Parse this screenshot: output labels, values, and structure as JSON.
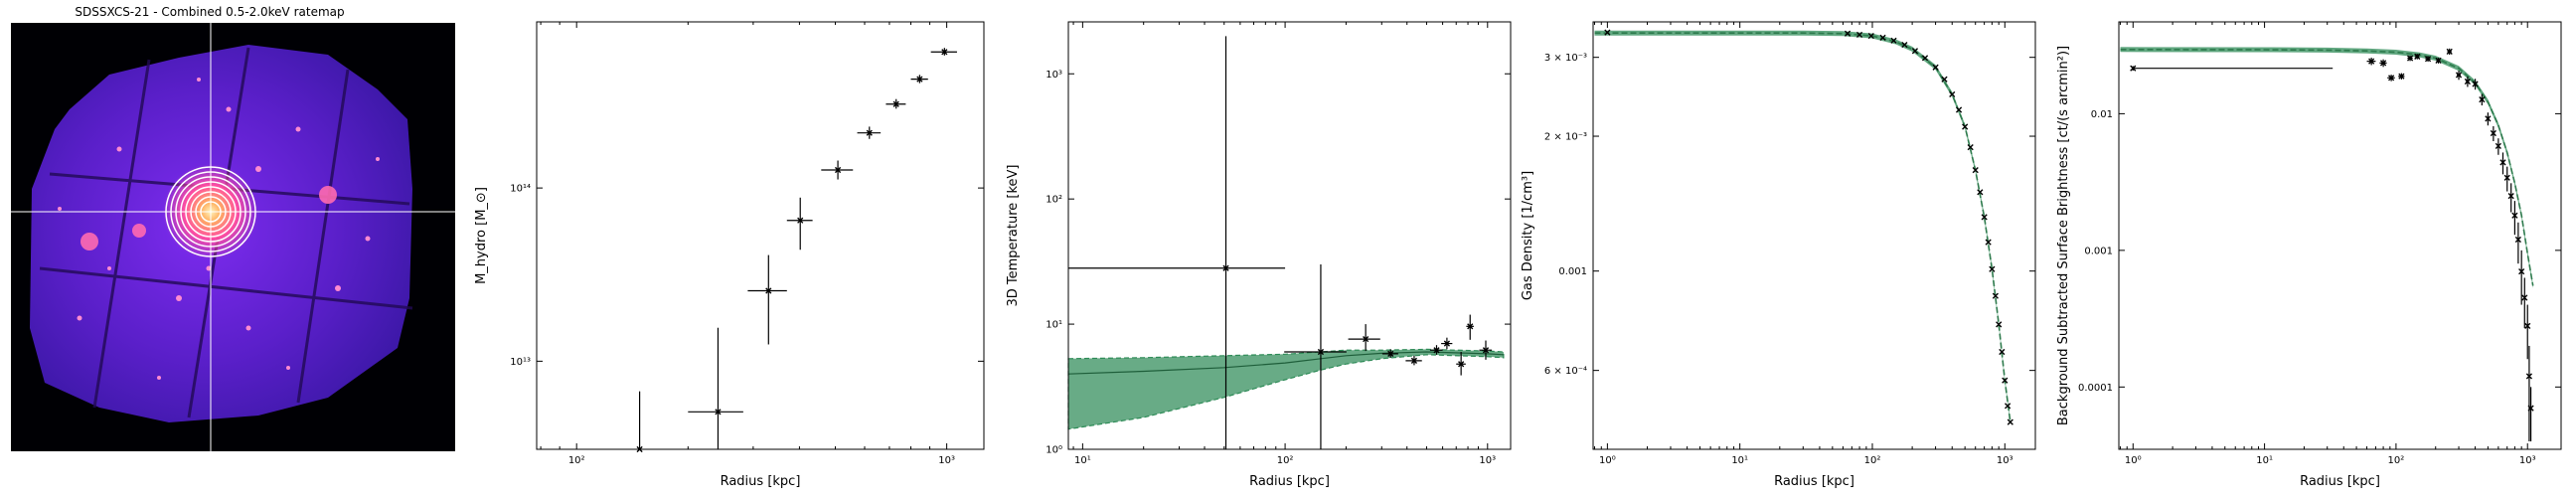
{
  "ratemap": {
    "title": "SDSSXCS-21 - Combined 0.5-2.0keV ratemap",
    "colormap": "magma"
  },
  "chart_data": [
    {
      "type": "scatter",
      "xlabel": "Radius [kpc]",
      "ylabel": "M_hydro [M_⊙]",
      "xscale": "log",
      "yscale": "log",
      "xlim": [
        78,
        1260
      ],
      "ylim": [
        3100000000000.0,
        910000000000000.0
      ],
      "xticks": [
        {
          "v": 100,
          "t": "10²"
        },
        {
          "v": 1000,
          "t": "10³"
        }
      ],
      "yticks": [
        {
          "v": 10000000000000.0,
          "t": "10¹³"
        },
        {
          "v": 100000000000000.0,
          "t": "10¹⁴"
        }
      ],
      "points": [
        {
          "x": 148,
          "y": 3100000000000.0,
          "xerr": [
            0,
            0
          ],
          "yerr": [
            0,
            3600000000000.0
          ]
        },
        {
          "x": 241,
          "y": 5100000000000.0,
          "xerr": [
            41,
            41
          ],
          "yerr": [
            4000000000000.0,
            10500000000000.0
          ]
        },
        {
          "x": 330,
          "y": 25500000000000.0,
          "xerr": [
            40,
            40
          ],
          "yerr": [
            13000000000000.0,
            15500000000000.0
          ]
        },
        {
          "x": 402,
          "y": 65000000000000.0,
          "xerr": [
            32,
            32
          ],
          "yerr": [
            21000000000000.0,
            23000000000000.0
          ]
        },
        {
          "x": 508,
          "y": 127000000000000.0,
          "xerr": [
            50,
            50
          ],
          "yerr": [
            15000000000000.0,
            17000000000000.0
          ]
        },
        {
          "x": 618,
          "y": 208000000000000.0,
          "xerr": [
            45,
            45
          ],
          "yerr": [
            16000000000000.0,
            18000000000000.0
          ]
        },
        {
          "x": 730,
          "y": 305000000000000.0,
          "xerr": [
            45,
            45
          ],
          "yerr": [
            18000000000000.0,
            21000000000000.0
          ]
        },
        {
          "x": 845,
          "y": 425000000000000.0,
          "xerr": [
            45,
            45
          ],
          "yerr": [
            22000000000000.0,
            25000000000000.0
          ]
        },
        {
          "x": 986,
          "y": 610000000000000.0,
          "xerr": [
            80,
            80
          ],
          "yerr": [
            28000000000000.0,
            34000000000000.0
          ]
        }
      ]
    },
    {
      "type": "line",
      "xlabel": "Radius [kpc]",
      "ylabel": "3D Temperature [keV]",
      "xscale": "log",
      "yscale": "log",
      "xlim": [
        8.5,
        1300
      ],
      "ylim": [
        1,
        2600
      ],
      "xticks": [
        {
          "v": 10,
          "t": "10¹"
        },
        {
          "v": 100,
          "t": "10²"
        },
        {
          "v": 1000,
          "t": "10³"
        }
      ],
      "yticks": [
        {
          "v": 1,
          "t": "10⁰"
        },
        {
          "v": 10,
          "t": "10¹"
        },
        {
          "v": 100,
          "t": "10²"
        },
        {
          "v": 1000,
          "t": "10³"
        }
      ],
      "color": "#2e8b57",
      "band": {
        "x": [
          8.5,
          20,
          50,
          100,
          150,
          200,
          300,
          500,
          1000,
          1200
        ],
        "upper": [
          5.3,
          5.4,
          5.6,
          5.75,
          6.0,
          6.2,
          6.2,
          6.3,
          6.1,
          6.0
        ],
        "model": [
          4.0,
          4.2,
          4.5,
          4.9,
          5.3,
          5.6,
          5.85,
          6.0,
          5.8,
          5.7
        ],
        "lower": [
          1.45,
          1.8,
          2.6,
          3.6,
          4.3,
          4.8,
          5.3,
          5.7,
          5.5,
          5.4
        ]
      },
      "points": [
        {
          "x": 51,
          "y": 28,
          "xerr": [
            43,
            49
          ],
          "yerr": [
            27.5,
            1970
          ]
        },
        {
          "x": 150,
          "y": 6.0,
          "xerr": [
            51,
            51
          ],
          "yerr": [
            5.5,
            24
          ]
        },
        {
          "x": 250,
          "y": 7.6,
          "xerr": [
            45,
            45
          ],
          "yerr": [
            1.5,
            2.4
          ]
        },
        {
          "x": 332,
          "y": 5.8,
          "xerr": [
            30,
            30
          ],
          "yerr": [
            0.4,
            0.5
          ]
        },
        {
          "x": 434,
          "y": 5.1,
          "xerr": [
            40,
            40
          ],
          "yerr": [
            0.4,
            0.5
          ]
        },
        {
          "x": 560,
          "y": 6.2,
          "xerr": [
            40,
            40
          ],
          "yerr": [
            0.5,
            0.6
          ]
        },
        {
          "x": 630,
          "y": 7.0,
          "xerr": [
            40,
            40
          ],
          "yerr": [
            0.7,
            0.8
          ]
        },
        {
          "x": 740,
          "y": 4.8,
          "xerr": [
            40,
            40
          ],
          "yerr": [
            0.9,
            1.2
          ]
        },
        {
          "x": 820,
          "y": 9.6,
          "xerr": [
            35,
            35
          ],
          "yerr": [
            2.1,
            2.3
          ]
        },
        {
          "x": 980,
          "y": 6.2,
          "xerr": [
            70,
            70
          ],
          "yerr": [
            1.0,
            1.2
          ]
        }
      ]
    },
    {
      "type": "line",
      "xlabel": "Radius [kpc]",
      "ylabel": "Gas Density [1/cm³]",
      "xscale": "log",
      "yscale": "log",
      "xlim": [
        0.78,
        1700
      ],
      "ylim": [
        0.0004,
        0.0036
      ],
      "xticks": [
        {
          "v": 1,
          "t": "10⁰"
        },
        {
          "v": 10,
          "t": "10¹"
        },
        {
          "v": 100,
          "t": "10²"
        },
        {
          "v": 1000,
          "t": "10³"
        }
      ],
      "yticks": [
        {
          "v": 0.0006,
          "t": "6 × 10⁻⁴"
        },
        {
          "v": 0.001,
          "t": "0.001"
        },
        {
          "v": 0.002,
          "t": "2 × 10⁻³"
        },
        {
          "v": 0.003,
          "t": "3 × 10⁻³"
        }
      ],
      "color": "#2e8b57",
      "model": {
        "x": [
          0.8,
          10,
          30,
          60,
          100,
          150,
          200,
          300,
          400,
          500,
          600,
          700,
          800,
          900,
          1000,
          1100
        ],
        "y": [
          0.0034,
          0.0034,
          0.0034,
          0.00339,
          0.00335,
          0.00325,
          0.00313,
          0.00285,
          0.00248,
          0.0021,
          0.00168,
          0.00132,
          0.00101,
          0.00076,
          0.00057,
          0.00046
        ]
      },
      "points": [
        {
          "x": 1.0,
          "y": 0.00341
        },
        {
          "x": 65,
          "y": 0.00339
        },
        {
          "x": 80,
          "y": 0.00337
        },
        {
          "x": 98,
          "y": 0.00335
        },
        {
          "x": 120,
          "y": 0.00332
        },
        {
          "x": 145,
          "y": 0.00327
        },
        {
          "x": 175,
          "y": 0.0032
        },
        {
          "x": 210,
          "y": 0.0031
        },
        {
          "x": 250,
          "y": 0.00299
        },
        {
          "x": 300,
          "y": 0.00285
        },
        {
          "x": 350,
          "y": 0.00268
        },
        {
          "x": 400,
          "y": 0.00248
        },
        {
          "x": 450,
          "y": 0.00229
        },
        {
          "x": 500,
          "y": 0.0021
        },
        {
          "x": 550,
          "y": 0.00189
        },
        {
          "x": 600,
          "y": 0.00168
        },
        {
          "x": 650,
          "y": 0.0015
        },
        {
          "x": 700,
          "y": 0.00132
        },
        {
          "x": 750,
          "y": 0.00116
        },
        {
          "x": 800,
          "y": 0.00101
        },
        {
          "x": 850,
          "y": 0.00088
        },
        {
          "x": 900,
          "y": 0.00076
        },
        {
          "x": 950,
          "y": 0.00066
        },
        {
          "x": 1000,
          "y": 0.00057
        },
        {
          "x": 1050,
          "y": 0.0005
        },
        {
          "x": 1100,
          "y": 0.00046
        }
      ]
    },
    {
      "type": "line",
      "xlabel": "Radius [kpc]",
      "ylabel": "Background Subtracted Surface Brightness [ct/(s arcmin²)]",
      "xscale": "log",
      "yscale": "log",
      "xlim": [
        0.78,
        1800
      ],
      "ylim": [
        3.5e-05,
        0.047
      ],
      "xticks": [
        {
          "v": 1,
          "t": "10⁰"
        },
        {
          "v": 10,
          "t": "10¹"
        },
        {
          "v": 100,
          "t": "10²"
        },
        {
          "v": 1000,
          "t": "10³"
        }
      ],
      "yticks": [
        {
          "v": 0.0001,
          "t": "0.0001"
        },
        {
          "v": 0.001,
          "t": "0.001"
        },
        {
          "v": 0.01,
          "t": "0.01"
        }
      ],
      "color": "#2e8b57",
      "model": {
        "x": [
          0.8,
          10,
          30,
          60,
          100,
          150,
          200,
          300,
          400,
          500,
          600,
          700,
          800,
          900,
          1000,
          1100
        ],
        "y": [
          0.0295,
          0.0294,
          0.0292,
          0.0288,
          0.0282,
          0.027,
          0.0255,
          0.0215,
          0.0168,
          0.0122,
          0.0082,
          0.0052,
          0.0031,
          0.0018,
          0.00095,
          0.00055
        ]
      },
      "points": [
        {
          "x": 1.0,
          "y": 0.0215,
          "xerr": [
            0,
            32
          ],
          "yerr": [
            0.0008,
            0.0008
          ]
        },
        {
          "x": 65,
          "y": 0.0242,
          "xerr": [
            5,
            5
          ],
          "yerr": [
            0.0015,
            0.0015
          ]
        },
        {
          "x": 80,
          "y": 0.0235,
          "xerr": [
            5,
            5
          ],
          "yerr": [
            0.0015,
            0.0015
          ]
        },
        {
          "x": 92,
          "y": 0.0183,
          "xerr": [
            6,
            6
          ],
          "yerr": [
            0.001,
            0.001
          ]
        },
        {
          "x": 110,
          "y": 0.0188,
          "xerr": [
            6,
            6
          ],
          "yerr": [
            0.001,
            0.001
          ]
        },
        {
          "x": 128,
          "y": 0.0255,
          "xerr": [
            6,
            6
          ],
          "yerr": [
            0.0012,
            0.0012
          ]
        },
        {
          "x": 145,
          "y": 0.0262,
          "xerr": [
            6,
            6
          ],
          "yerr": [
            0.0012,
            0.0012
          ]
        },
        {
          "x": 175,
          "y": 0.0252,
          "xerr": [
            8,
            8
          ],
          "yerr": [
            0.0012,
            0.0012
          ]
        },
        {
          "x": 210,
          "y": 0.0245,
          "xerr": [
            8,
            8
          ],
          "yerr": [
            0.0012,
            0.0012
          ]
        },
        {
          "x": 255,
          "y": 0.0285,
          "xerr": [
            10,
            10
          ],
          "yerr": [
            0.0015,
            0.0015
          ]
        },
        {
          "x": 300,
          "y": 0.0192,
          "xerr": [
            10,
            10
          ],
          "yerr": [
            0.0015,
            0.0015
          ]
        },
        {
          "x": 350,
          "y": 0.0172,
          "xerr": [
            10,
            10
          ],
          "yerr": [
            0.0015,
            0.0015
          ]
        },
        {
          "x": 400,
          "y": 0.0165,
          "xerr": [
            10,
            10
          ],
          "yerr": [
            0.0015,
            0.0015
          ]
        },
        {
          "x": 450,
          "y": 0.0127,
          "xerr": [
            12,
            12
          ],
          "yerr": [
            0.0012,
            0.0012
          ]
        },
        {
          "x": 500,
          "y": 0.0092,
          "xerr": [
            12,
            12
          ],
          "yerr": [
            0.001,
            0.001
          ]
        },
        {
          "x": 550,
          "y": 0.0072,
          "xerr": [
            12,
            12
          ],
          "yerr": [
            0.0009,
            0.0009
          ]
        },
        {
          "x": 600,
          "y": 0.0058,
          "xerr": [
            12,
            12
          ],
          "yerr": [
            0.0008,
            0.0008
          ]
        },
        {
          "x": 650,
          "y": 0.0044,
          "xerr": [
            12,
            12
          ],
          "yerr": [
            0.0008,
            0.0008
          ]
        },
        {
          "x": 700,
          "y": 0.0034,
          "xerr": [
            12,
            12
          ],
          "yerr": [
            0.0007,
            0.0007
          ]
        },
        {
          "x": 750,
          "y": 0.0025,
          "xerr": [
            12,
            12
          ],
          "yerr": [
            0.0006,
            0.0006
          ]
        },
        {
          "x": 800,
          "y": 0.0018,
          "xerr": [
            12,
            12
          ],
          "yerr": [
            0.0005,
            0.0005
          ]
        },
        {
          "x": 850,
          "y": 0.0012,
          "xerr": [
            12,
            12
          ],
          "yerr": [
            0.0004,
            0.0004
          ]
        },
        {
          "x": 900,
          "y": 0.0007,
          "xerr": [
            12,
            12
          ],
          "yerr": [
            0.0003,
            0.0003
          ]
        },
        {
          "x": 950,
          "y": 0.00045,
          "xerr": [
            12,
            12
          ],
          "yerr": [
            0.00018,
            0.00018
          ]
        },
        {
          "x": 1000,
          "y": 0.00028,
          "xerr": [
            12,
            12
          ],
          "yerr": [
            0.00012,
            0.00012
          ]
        },
        {
          "x": 1030,
          "y": 0.00012,
          "xerr": [
            10,
            10
          ],
          "yerr": [
            8e-05,
            8e-05
          ]
        },
        {
          "x": 1060,
          "y": 7e-05,
          "xerr": [
            10,
            10
          ],
          "yerr": [
            3e-05,
            3e-05
          ]
        }
      ]
    }
  ]
}
